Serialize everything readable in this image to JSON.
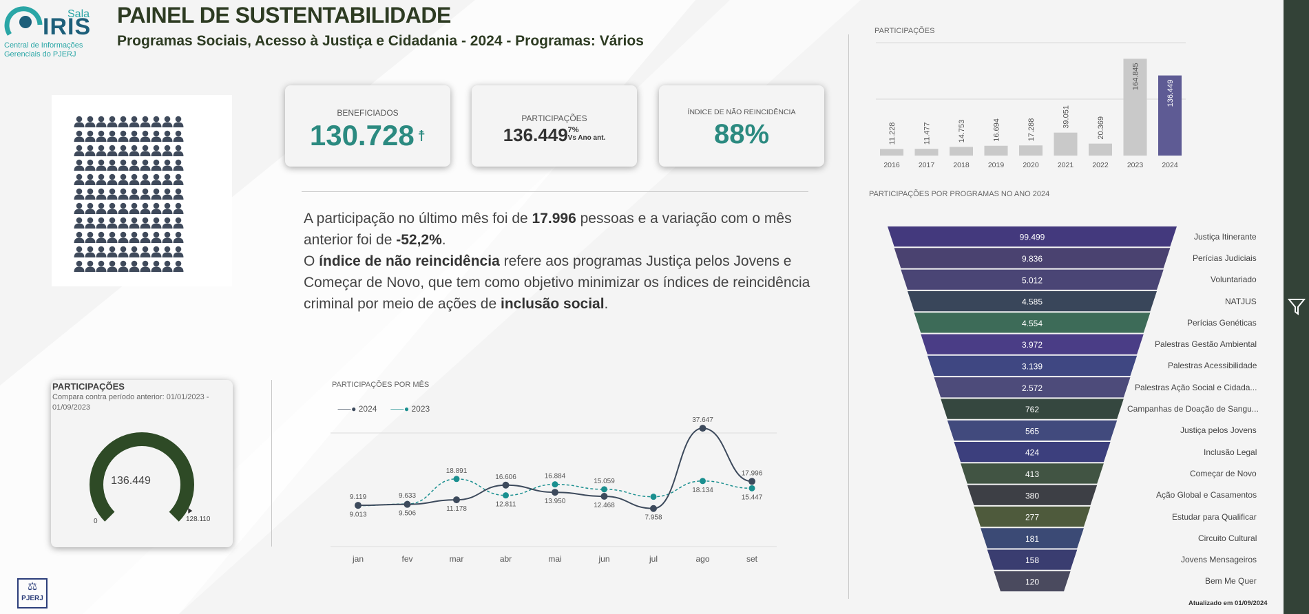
{
  "logo": {
    "sala": "Sala",
    "iris": "IRIS",
    "line1": "Central de Informações",
    "line2": "Gerenciais do PJERJ"
  },
  "header": {
    "title": "PAINEL DE SUSTENTABILIDADE",
    "subtitle": "Programas Sociais, Acesso à Justiça e Cidadania - 2024 - Programas: Vários"
  },
  "kpis": {
    "beneficiados": {
      "label": "BENEFICIADOS",
      "value": "130.728"
    },
    "participacoes": {
      "label": "PARTICIPAÇÕES",
      "value": "136.449",
      "delta": "7%",
      "delta_note": "Vs Ano ant."
    },
    "nao_reincidencia": {
      "label": "ÍNDICE DE NÃO REINCIDÊNCIA",
      "value": "88%"
    }
  },
  "paragraph": {
    "p1a": "A participação no último mês foi de ",
    "p1b": "17.996",
    "p1c": " pessoas e a variação com o mês anterior foi de ",
    "p1d": "-52,2%",
    "p1e": ".",
    "p2a": "O ",
    "p2b": "índice de não reincidência",
    "p2c": " refere aos programas Justiça pelos Jovens e Começar de Novo, que tem como objetivo minimizar os índices de reincidência criminal por meio de ações de ",
    "p2d": "inclusão social",
    "p2e": "."
  },
  "gauge": {
    "title": "PARTICIPAÇÕES",
    "subtitle": "Compara contra período anterior: 01/01/2023 - 01/09/2023",
    "value": "136.449",
    "min": "0",
    "target": "128.110",
    "color": "#2e4a26"
  },
  "footer": {
    "updated": "Atualizado em 01/09/2024",
    "pjerj": "PJERJ"
  },
  "chart_data": [
    {
      "type": "bar",
      "title": "PARTICIPAÇÕES",
      "categories": [
        "2016",
        "2017",
        "2018",
        "2019",
        "2020",
        "2021",
        "2022",
        "2023",
        "2024"
      ],
      "values": [
        11228,
        11477,
        14753,
        16694,
        17288,
        39051,
        20369,
        164845,
        136449
      ],
      "value_labels": [
        "11.228",
        "11.477",
        "14.753",
        "16.694",
        "17.288",
        "39.051",
        "20.369",
        "164.845",
        "136.449"
      ],
      "colors": {
        "default": "#c9c9c9",
        "highlight": "#5e5b94"
      }
    },
    {
      "type": "line",
      "title": "PARTICIPAÇÕES POR MÊS",
      "categories": [
        "jan",
        "fev",
        "mar",
        "abr",
        "mai",
        "jun",
        "jul",
        "ago",
        "set"
      ],
      "series": [
        {
          "name": "2024",
          "color": "#3d4a5c",
          "values": [
            9119,
            9506,
            11178,
            16606,
            13950,
            12468,
            7958,
            37647,
            17996
          ],
          "labels": [
            "9.119",
            "9.506",
            "11.178",
            "16.606",
            "13.950",
            "12.468",
            "7.958",
            "37.647",
            "17.996"
          ]
        },
        {
          "name": "2023",
          "color": "#1a8f8f",
          "values": [
            9013,
            9633,
            18891,
            12811,
            16884,
            15059,
            12300,
            18134,
            15447
          ],
          "labels": [
            "9.013",
            "9.633",
            "18.891",
            "12.811",
            "16.884",
            "15.059",
            "",
            "18.134",
            "15.447"
          ]
        }
      ]
    },
    {
      "type": "bar",
      "title": "PARTICIPAÇÕES POR PROGRAMAS NO ANO 2024",
      "categories": [
        "Justiça Itinerante",
        "Perícias Judiciais",
        "Voluntariado",
        "NATJUS",
        "Perícias Genéticas",
        "Palestras Gestão Ambiental",
        "Palestras Acessibilidade",
        "Palestras Ação Social e Cidada...",
        "Campanhas de Doação de Sangu...",
        "Justiça pelos Jovens",
        "Inclusão Legal",
        "Começar de Novo",
        "Ação Global e Casamentos",
        "Estudar para Qualificar",
        "Circuito Cultural",
        "Jovens Mensageiros",
        "Bem Me Quer"
      ],
      "values": [
        99499,
        9836,
        5012,
        4585,
        4554,
        3972,
        3139,
        2572,
        762,
        565,
        424,
        413,
        380,
        277,
        181,
        158,
        120
      ],
      "value_labels": [
        "99.499",
        "9.836",
        "5.012",
        "4.585",
        "4.554",
        "3.972",
        "3.139",
        "2.572",
        "762",
        "565",
        "424",
        "413",
        "380",
        "277",
        "181",
        "158",
        "120"
      ],
      "colors": [
        "#43397d",
        "#4a4270",
        "#4a4575",
        "#39465a",
        "#3d6b58",
        "#4a3d86",
        "#3f4782",
        "#4d4b7a",
        "#35473f",
        "#414a7d",
        "#3c3f7d",
        "#415443",
        "#3d3f45",
        "#4e5a3c",
        "#3b4a75",
        "#3a3d70",
        "#4a4a5e"
      ]
    }
  ]
}
